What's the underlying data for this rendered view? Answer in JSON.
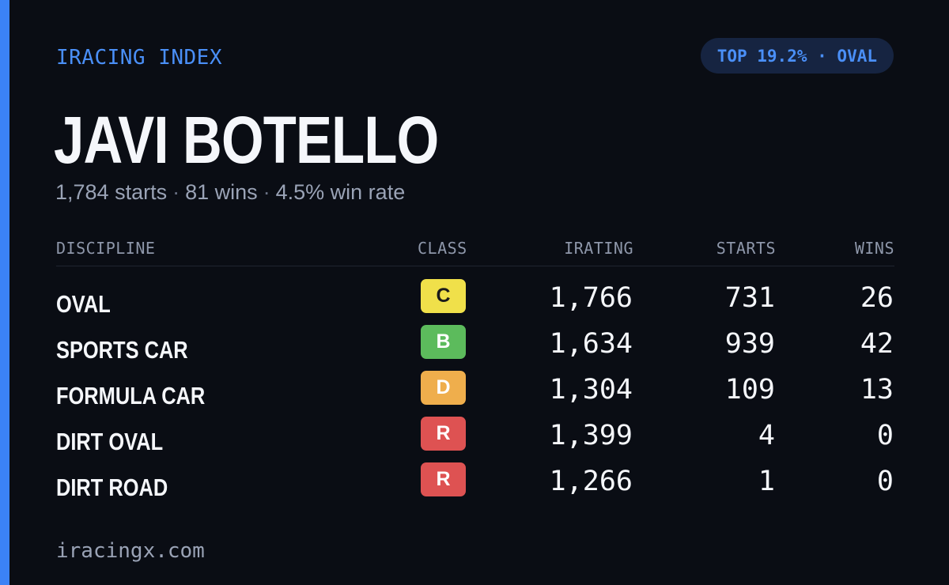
{
  "header": {
    "brand": "IRACING INDEX",
    "rank_pill": "TOP 19.2% · OVAL"
  },
  "driver": {
    "name": "JAVI BOTELLO",
    "starts": "1,784 starts",
    "wins": "81 wins",
    "win_rate": "4.5% win rate",
    "separator": "·"
  },
  "table": {
    "columns": {
      "discipline": "DISCIPLINE",
      "class": "CLASS",
      "irating": "IRATING",
      "starts": "STARTS",
      "wins": "WINS"
    },
    "rows": [
      {
        "discipline": "OVAL",
        "class": "C",
        "class_color": "#f0e04a",
        "class_text_color": "#1a1a1a",
        "irating": "1,766",
        "starts": "731",
        "wins": "26"
      },
      {
        "discipline": "SPORTS CAR",
        "class": "B",
        "class_color": "#5cbb5c",
        "class_text_color": "#ffffff",
        "irating": "1,634",
        "starts": "939",
        "wins": "42"
      },
      {
        "discipline": "FORMULA CAR",
        "class": "D",
        "class_color": "#efae4c",
        "class_text_color": "#ffffff",
        "irating": "1,304",
        "starts": "109",
        "wins": "13"
      },
      {
        "discipline": "DIRT OVAL",
        "class": "R",
        "class_color": "#de5252",
        "class_text_color": "#ffffff",
        "irating": "1,399",
        "starts": "4",
        "wins": "0"
      },
      {
        "discipline": "DIRT ROAD",
        "class": "R",
        "class_color": "#de5252",
        "class_text_color": "#ffffff",
        "irating": "1,266",
        "starts": "1",
        "wins": "0"
      }
    ]
  },
  "footer": {
    "site": "iracingx.com"
  },
  "colors": {
    "accent": "#3b82f6",
    "background": "#0a0d14",
    "pill_bg": "#162441"
  }
}
